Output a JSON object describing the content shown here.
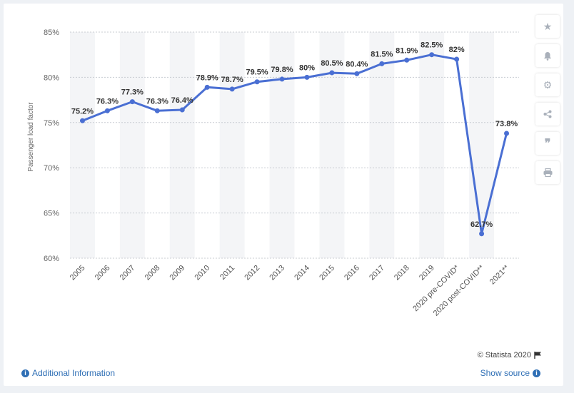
{
  "chart_data": {
    "type": "line",
    "categories": [
      "2005",
      "2006",
      "2007",
      "2008",
      "2009",
      "2010",
      "2011",
      "2012",
      "2013",
      "2014",
      "2015",
      "2016",
      "2017",
      "2018",
      "2019",
      "2020 pre-COVID*",
      "2020 post-COVID**",
      "2021**"
    ],
    "series": [
      {
        "name": "Passenger load factor",
        "values": [
          75.2,
          76.3,
          77.3,
          76.3,
          76.4,
          78.9,
          78.7,
          79.5,
          79.8,
          80.0,
          80.5,
          80.4,
          81.5,
          81.9,
          82.5,
          82.0,
          62.7,
          73.8
        ]
      }
    ],
    "labels": [
      "75.2%",
      "76.3%",
      "77.3%",
      "76.3%",
      "76.4%",
      "78.9%",
      "78.7%",
      "79.5%",
      "79.8%",
      "80%",
      "80.5%",
      "80.4%",
      "81.5%",
      "81.9%",
      "82.5%",
      "82%",
      "62.7%",
      "73.8%"
    ],
    "ylabel": "Passenger load factor",
    "ylim": [
      60,
      85
    ],
    "yticks": [
      60,
      65,
      70,
      75,
      80,
      85
    ],
    "ytick_labels": [
      "60%",
      "65%",
      "70%",
      "75%",
      "80%",
      "85%"
    ],
    "colors": {
      "line": "#4a6fd3",
      "band": "#f4f5f7",
      "grid": "#c8ccd2"
    }
  },
  "footer": {
    "additional_info": "Additional Information",
    "show_source": "Show source",
    "credit": "© Statista 2020"
  },
  "toolbar": [
    "star-icon",
    "bell-icon",
    "gear-icon",
    "share-icon",
    "quote-icon",
    "print-icon"
  ]
}
